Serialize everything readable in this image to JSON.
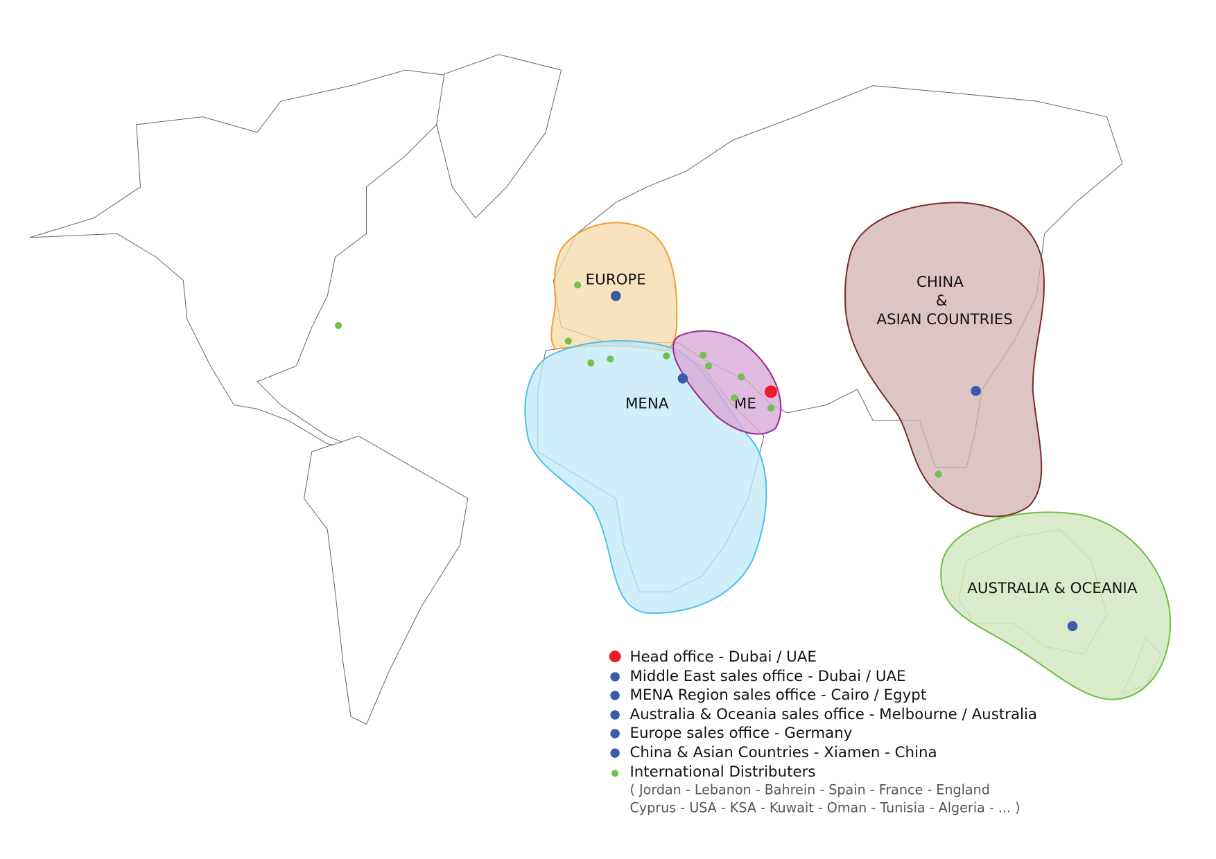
{
  "regions": [
    {
      "label": "EUROPE"
    },
    {
      "label": "MENA"
    },
    {
      "label": "ME"
    },
    {
      "lines": [
        "CHINA",
        "&",
        "ASIAN COUNTRIES"
      ]
    },
    {
      "label": "AUSTRALIA & OCEANIA"
    }
  ],
  "legend": {
    "items": [
      {
        "label": "Head office - Dubai / UAE"
      },
      {
        "label": "Middle East sales office - Dubai / UAE"
      },
      {
        "label": "MENA Region sales office - Cairo / Egypt"
      },
      {
        "label": "Australia & Oceania sales office - Melbourne / Australia"
      },
      {
        "label": "Europe sales office - Germany"
      },
      {
        "label": "China & Asian Countries - Xiamen - China"
      },
      {
        "label": "International Distributers"
      }
    ],
    "note_lines": [
      "( Jordan - Lebanon - Bahrein - Spain - France - England",
      "Cyprus - USA - KSA - Kuwait - Oman - Tunisia - Algeria - ... )"
    ]
  }
}
